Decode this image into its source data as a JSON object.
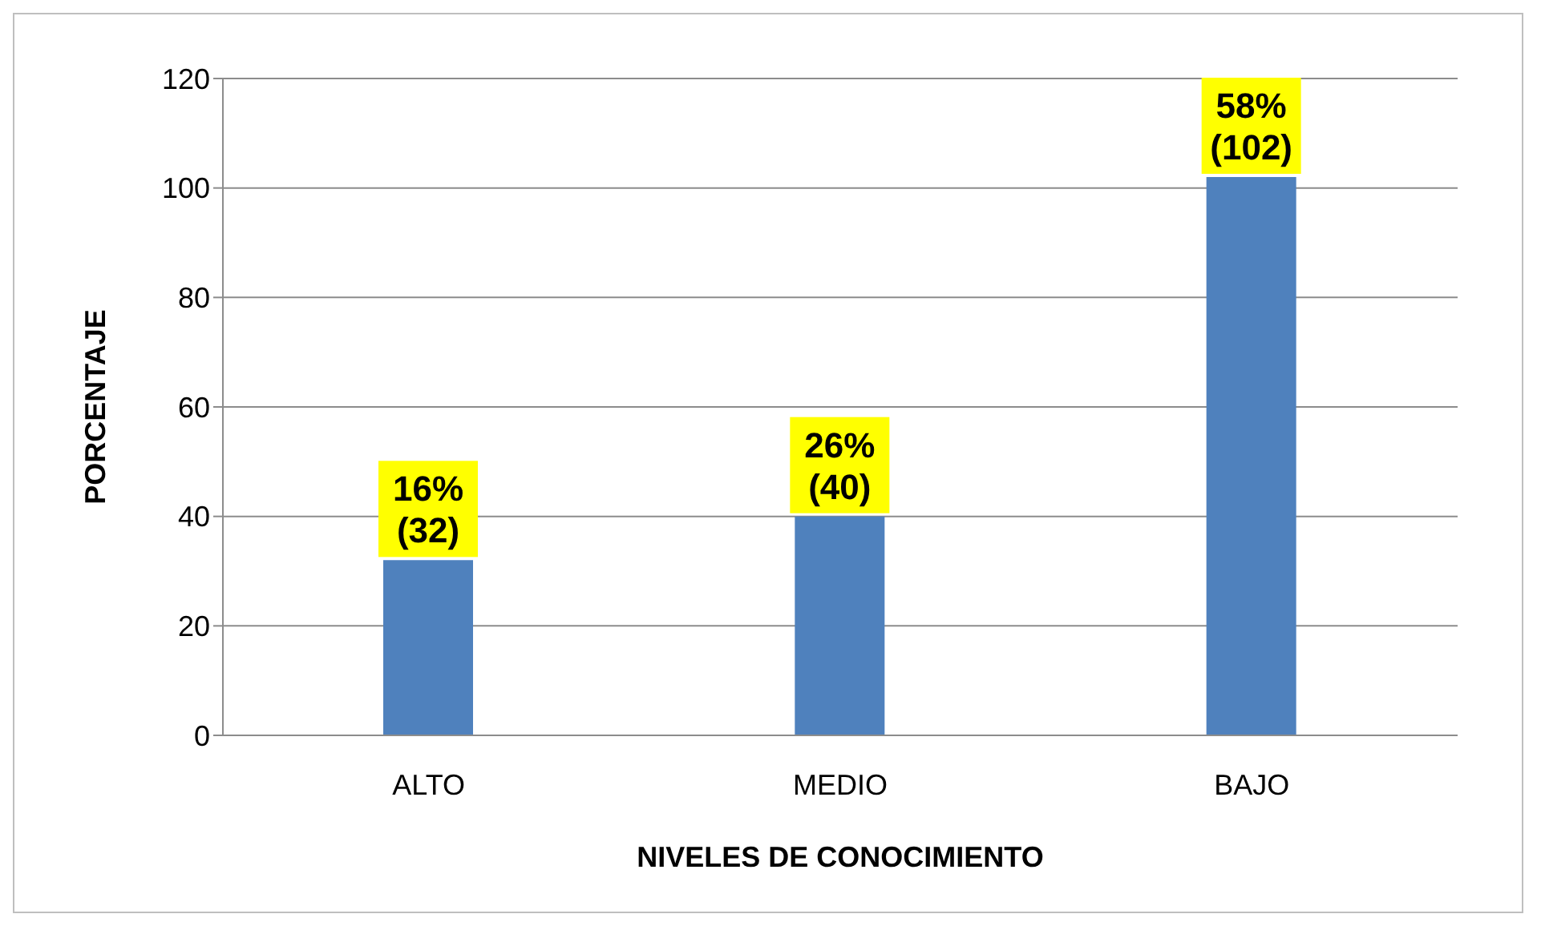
{
  "chart_data": {
    "type": "bar",
    "xlabel": "NIVELES DE CONOCIMIENTO",
    "ylabel": "PORCENTAJE",
    "categories": [
      "ALTO",
      "MEDIO",
      "BAJO"
    ],
    "values": [
      32,
      40,
      102
    ],
    "value_labels": [
      "16%\n(32)",
      "26%\n(40)",
      "58%\n(102)"
    ],
    "color": "#4f81bd",
    "ylim": [
      0,
      120
    ],
    "yticks": [
      0,
      20,
      40,
      60,
      80,
      100,
      120
    ],
    "grid": "y"
  }
}
